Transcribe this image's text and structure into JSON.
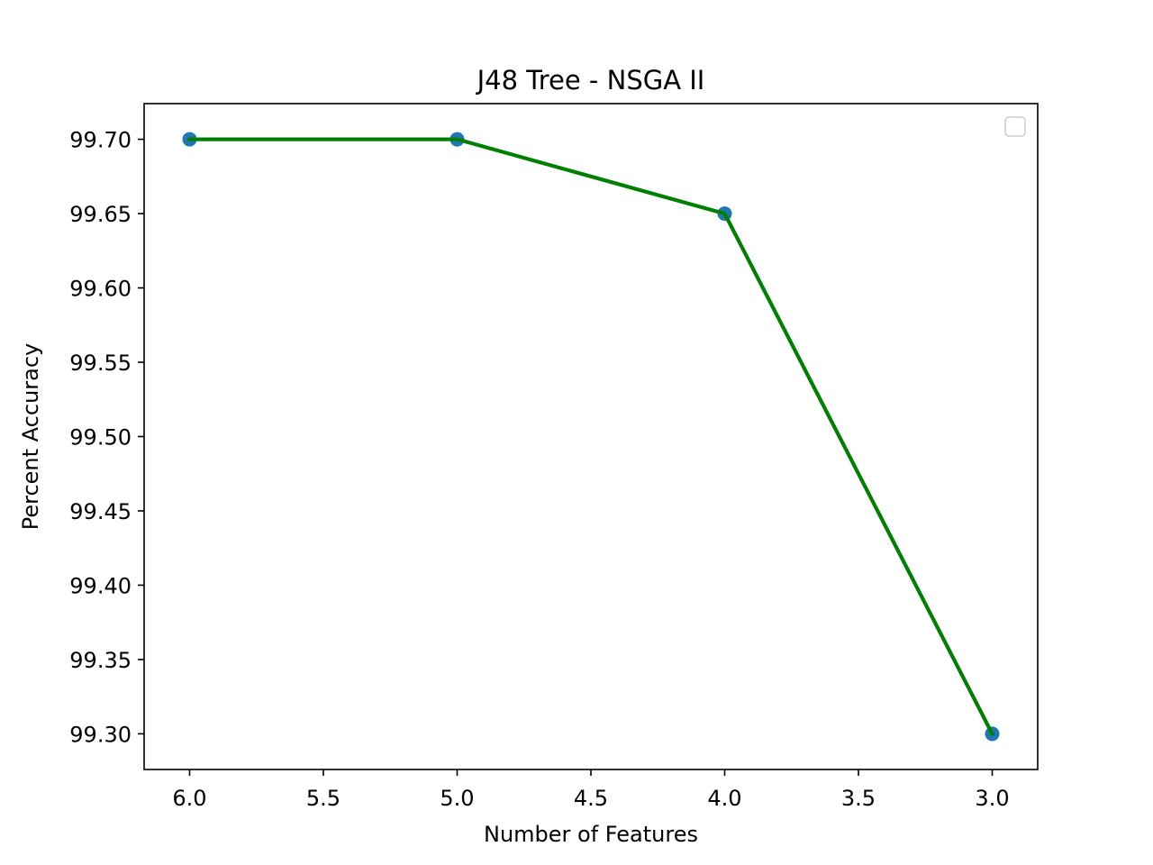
{
  "chart_data": {
    "type": "line",
    "title": "J48 Tree - NSGA II",
    "xlabel": "Number of Features",
    "ylabel": "Percent Accuracy",
    "x_inverted": true,
    "xlim": [
      6.17,
      2.83
    ],
    "ylim": [
      99.276,
      99.724
    ],
    "xticks": [
      6.0,
      5.5,
      5.0,
      4.5,
      4.0,
      3.5,
      3.0
    ],
    "xtick_labels": [
      "6.0",
      "5.5",
      "5.0",
      "4.5",
      "4.0",
      "3.5",
      "3.0"
    ],
    "yticks": [
      99.3,
      99.35,
      99.4,
      99.45,
      99.5,
      99.55,
      99.6,
      99.65,
      99.7
    ],
    "ytick_labels": [
      "99.30",
      "99.35",
      "99.40",
      "99.45",
      "99.50",
      "99.55",
      "99.60",
      "99.65",
      "99.70"
    ],
    "grid": false,
    "legend": "top-right (empty)",
    "series": [
      {
        "x": [
          6,
          5,
          4,
          3
        ],
        "y": [
          99.7,
          99.7,
          99.65,
          99.3
        ],
        "line_color": "#008000",
        "marker_color": "#1f77b4"
      }
    ]
  }
}
